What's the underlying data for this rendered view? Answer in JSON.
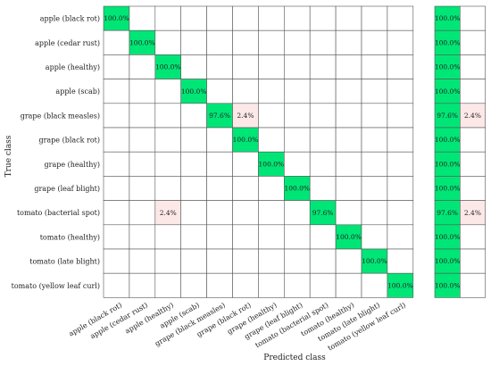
{
  "chart_data": {
    "type": "heatmap",
    "xlabel": "Predicted class",
    "ylabel": "True class",
    "classes": [
      "apple (black rot)",
      "apple (cedar rust)",
      "apple (healthy)",
      "apple (scab)",
      "grape (black measles)",
      "grape (black rot)",
      "grape (healthy)",
      "grape (leaf blight)",
      "tomato (bacterial spot)",
      "tomato (healthy)",
      "tomato (late blight)",
      "tomato (yellow leaf curl)"
    ],
    "matrix": [
      [
        100.0,
        null,
        null,
        null,
        null,
        null,
        null,
        null,
        null,
        null,
        null,
        null
      ],
      [
        null,
        100.0,
        null,
        null,
        null,
        null,
        null,
        null,
        null,
        null,
        null,
        null
      ],
      [
        null,
        null,
        100.0,
        null,
        null,
        null,
        null,
        null,
        null,
        null,
        null,
        null
      ],
      [
        null,
        null,
        null,
        100.0,
        null,
        null,
        null,
        null,
        null,
        null,
        null,
        null
      ],
      [
        null,
        null,
        null,
        null,
        97.6,
        2.4,
        null,
        null,
        null,
        null,
        null,
        null
      ],
      [
        null,
        null,
        null,
        null,
        null,
        100.0,
        null,
        null,
        null,
        null,
        null,
        null
      ],
      [
        null,
        null,
        null,
        null,
        null,
        null,
        100.0,
        null,
        null,
        null,
        null,
        null
      ],
      [
        null,
        null,
        null,
        null,
        null,
        null,
        null,
        100.0,
        null,
        null,
        null,
        null
      ],
      [
        null,
        null,
        2.4,
        null,
        null,
        null,
        null,
        null,
        97.6,
        null,
        null,
        null
      ],
      [
        null,
        null,
        null,
        null,
        null,
        null,
        null,
        null,
        null,
        100.0,
        null,
        null
      ],
      [
        null,
        null,
        null,
        null,
        null,
        null,
        null,
        null,
        null,
        null,
        100.0,
        null
      ],
      [
        null,
        null,
        null,
        null,
        null,
        null,
        null,
        null,
        null,
        null,
        null,
        100.0
      ]
    ],
    "summary": [
      [
        100.0,
        null
      ],
      [
        100.0,
        null
      ],
      [
        100.0,
        null
      ],
      [
        100.0,
        null
      ],
      [
        97.6,
        2.4
      ],
      [
        100.0,
        null
      ],
      [
        100.0,
        null
      ],
      [
        100.0,
        null
      ],
      [
        97.6,
        2.4
      ],
      [
        100.0,
        null
      ],
      [
        100.0,
        null
      ],
      [
        100.0,
        null
      ]
    ],
    "value_suffix": "%",
    "colors": {
      "correct": "#00e676",
      "error": "#fde8e8",
      "empty": "#ffffff",
      "grid": "#555555"
    }
  }
}
